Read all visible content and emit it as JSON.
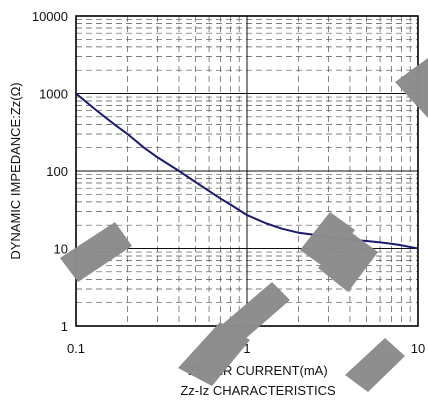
{
  "chart_data": {
    "type": "line",
    "xlabel": "ZENER CURRENT(mA)",
    "ylabel": "DYNAMIC IMPEDANCE:Zz(Ω)",
    "caption": "Zz-Iz CHARACTERISTICS",
    "x_scale": "log",
    "y_scale": "log",
    "xlim": [
      0.1,
      10
    ],
    "ylim": [
      1,
      10000
    ],
    "x_ticks": [
      "0.1",
      "1",
      "10"
    ],
    "y_ticks": [
      "1",
      "10",
      "100",
      "1000",
      "10000"
    ],
    "grid": true,
    "line_color": "#1a1a6e",
    "series": [
      {
        "x": [
          0.1,
          0.13,
          0.17,
          0.2,
          0.25,
          0.3,
          0.4,
          0.5,
          0.6,
          0.7,
          0.8,
          1.0,
          1.3,
          1.6,
          2.0,
          2.5,
          3.0,
          4.0,
          5.0,
          6.0,
          7.0,
          8.0,
          10.0
        ],
        "y": [
          1000,
          620,
          390,
          300,
          200,
          150,
          100,
          72,
          55,
          44,
          37,
          27,
          21,
          18,
          16,
          15,
          14,
          13,
          12.5,
          12,
          11.5,
          11,
          10
        ]
      }
    ]
  }
}
